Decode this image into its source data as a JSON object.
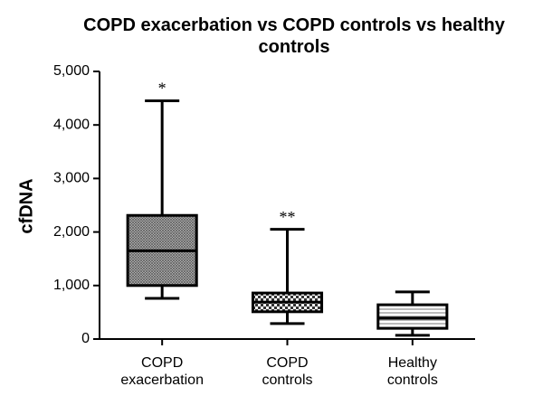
{
  "chart_data": {
    "type": "box",
    "title": "COPD exacerbation vs COPD controls vs healthy controls",
    "y_label": "cfDNA",
    "categories": [
      "COPD exacerbation",
      "COPD controls",
      "Healthy controls"
    ],
    "min": [
      760,
      290,
      70
    ],
    "q1": [
      1000,
      510,
      200
    ],
    "median": [
      1650,
      690,
      390
    ],
    "q3": [
      2310,
      860,
      640
    ],
    "max": [
      4450,
      2050,
      880
    ],
    "annotations": [
      "*",
      "**",
      null
    ],
    "ylim": [
      0,
      5000
    ],
    "yticks": [
      0,
      {
        "value": 1000,
        "label": "1,000"
      },
      {
        "value": 2000,
        "label": "2,000"
      },
      {
        "value": 3000,
        "label": "3,000"
      },
      {
        "value": 4000,
        "label": "4,000"
      },
      {
        "value": 5000,
        "label": "5,000"
      }
    ]
  }
}
